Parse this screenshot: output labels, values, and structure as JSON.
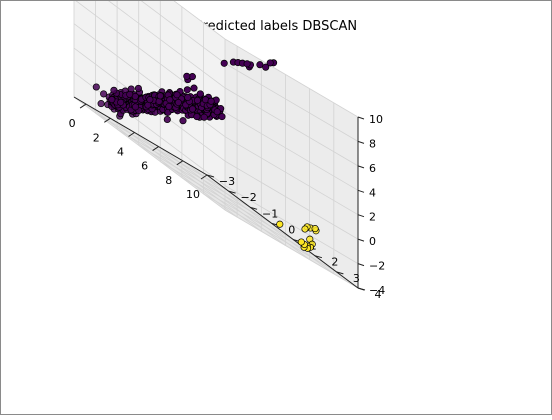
{
  "chart_data": {
    "type": "scatter",
    "projection": "3d",
    "title": "Predicted labels DBSCAN",
    "xlabel": "",
    "ylabel": "",
    "zlabel": "",
    "xlim": [
      -1,
      10
    ],
    "ylim": [
      -3,
      4
    ],
    "zlim": [
      -4,
      10
    ],
    "xticks": [
      0,
      2,
      4,
      6,
      8,
      10
    ],
    "yticks": [
      -3,
      -2,
      -1,
      0,
      1,
      2,
      3,
      4
    ],
    "zticks": [
      -4,
      -2,
      0,
      2,
      4,
      6,
      8,
      10
    ],
    "grid": true,
    "legend": "none",
    "clusters": [
      {
        "label": "0",
        "color": "#440154",
        "points": [
          [
            9.8,
            0.2,
            9.3
          ],
          [
            9.7,
            0.1,
            9.1
          ],
          [
            9.5,
            0.0,
            8.5
          ],
          [
            9.2,
            -0.1,
            8.4
          ],
          [
            8.6,
            -0.2,
            7.9
          ],
          [
            8.5,
            -0.3,
            7.8
          ],
          [
            8.3,
            -0.4,
            7.6
          ],
          [
            8.1,
            -0.5,
            7.4
          ],
          [
            7.9,
            -0.6,
            7.2
          ],
          [
            7.5,
            -0.8,
            6.6
          ],
          [
            7.8,
            0.2,
            7.8
          ],
          [
            5.3,
            -1.3,
            3.6
          ],
          [
            5.4,
            -1.1,
            3.9
          ],
          [
            5.2,
            -1.2,
            3.4
          ],
          [
            0.0,
            -1.2,
            -1.3
          ],
          [
            -0.1,
            -1.3,
            -1.4
          ],
          [
            -0.2,
            -1.5,
            -1.9
          ],
          [
            -0.7,
            -1.6,
            -2.6
          ],
          [
            -0.9,
            -1.8,
            -2.9
          ]
        ],
        "dense_band": {
          "count": 460,
          "t_range": [
            -0.8,
            5.6
          ],
          "x": {
            "base": 0.45,
            "slope": 1.0
          },
          "y": {
            "base": -1.5,
            "slope": 0.18
          },
          "z": {
            "base": -1.6,
            "slope": 0.78
          },
          "spread": 0.55
        }
      },
      {
        "label": "1",
        "color": "#fde725",
        "points": [
          [
            7.5,
            3.2,
            -1.6
          ],
          [
            7.6,
            3.4,
            -1.5
          ],
          [
            7.4,
            3.1,
            -1.7
          ],
          [
            7.7,
            3.3,
            -1.4
          ],
          [
            7.4,
            3.0,
            -2.0
          ],
          [
            7.8,
            3.0,
            -2.6
          ],
          [
            8.0,
            3.0,
            -2.9
          ],
          [
            8.2,
            2.8,
            -3.3
          ],
          [
            8.3,
            2.6,
            -3.4
          ],
          [
            8.6,
            2.3,
            -3.5
          ],
          [
            8.5,
            2.5,
            -3.6
          ],
          [
            8.4,
            2.4,
            -3.7
          ],
          [
            8.7,
            2.1,
            -3.5
          ],
          [
            9.6,
            0.6,
            -3.5
          ]
        ]
      }
    ]
  }
}
